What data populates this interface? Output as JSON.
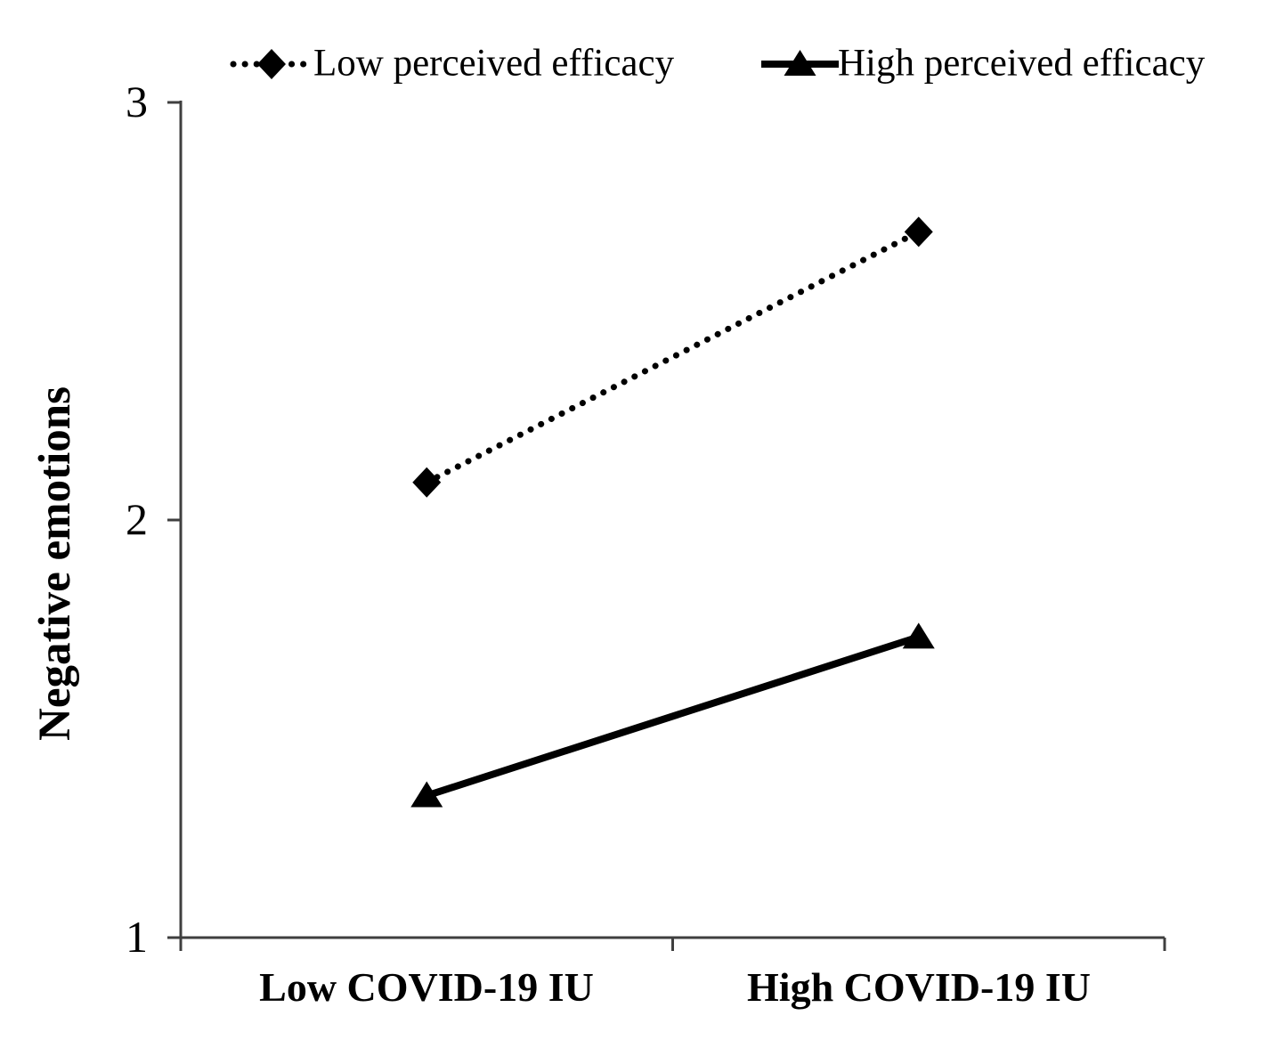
{
  "figure": {
    "background": "#ffffff",
    "text_color": "#000000",
    "axis_color": "#3f3f3f",
    "series_color": "#000000"
  },
  "legend": {
    "items": [
      {
        "label": "Low perceived efficacy",
        "swatch": "dotted-line-diamond-icon"
      },
      {
        "label": "High perceived efficacy",
        "swatch": "solid-line-triangle-icon"
      }
    ]
  },
  "chart_data": {
    "type": "line",
    "title": "",
    "categories": [
      "Low COVID-19 IU",
      "High COVID-19 IU"
    ],
    "series": [
      {
        "name": "Low perceived efficacy",
        "values": [
          2.09,
          2.69
        ],
        "line": "dotted",
        "marker": "diamond",
        "color": "#000000"
      },
      {
        "name": "High perceived efficacy",
        "values": [
          1.34,
          1.72
        ],
        "line": "solid",
        "marker": "triangle",
        "color": "#000000"
      }
    ],
    "xlabel": "",
    "ylabel": "Negative emotions",
    "ylim": [
      1,
      3
    ],
    "yticks": [
      1,
      2,
      3
    ],
    "grid": false,
    "legend_position": "top"
  }
}
